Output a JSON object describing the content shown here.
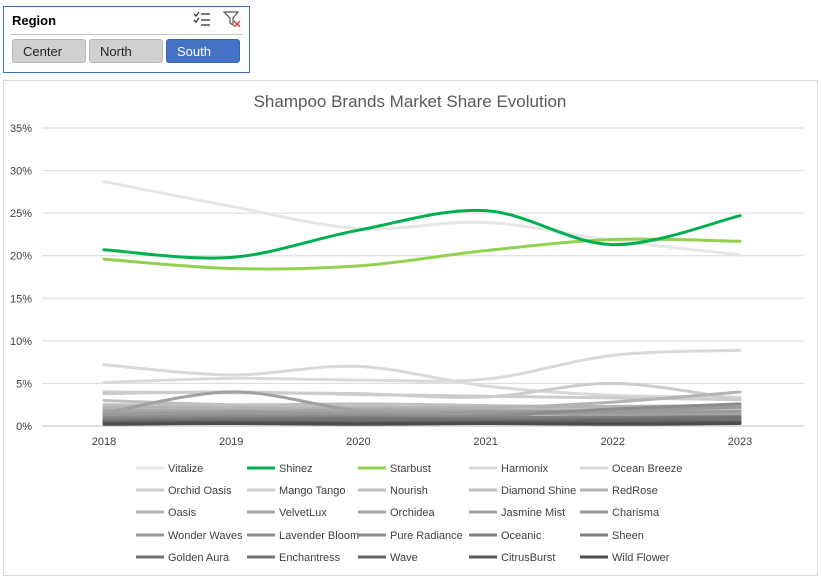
{
  "slicer": {
    "title": "Region",
    "icons": {
      "multiselect": "multi-select-icon",
      "clear": "clear-filter-icon"
    },
    "items": [
      {
        "label": "Center",
        "selected": false
      },
      {
        "label": "North",
        "selected": false
      },
      {
        "label": "South",
        "selected": true
      }
    ],
    "selected_color": "#4472c4"
  },
  "chart_data": {
    "type": "line",
    "title": "Shampoo Brands Market Share Evolution",
    "x": [
      "2018",
      "2019",
      "2020",
      "2021",
      "2022",
      "2023"
    ],
    "ylim": [
      0,
      0.35
    ],
    "yticks": [
      "0%",
      "5%",
      "10%",
      "15%",
      "20%",
      "25%",
      "30%",
      "35%"
    ],
    "grid": true,
    "legend_position": "bottom",
    "series": [
      {
        "name": "Vitalize",
        "color": "#e6e6e6",
        "values": [
          0.287,
          0.258,
          0.232,
          0.239,
          0.218,
          0.201
        ]
      },
      {
        "name": "Shinez",
        "color": "#00b050",
        "values": [
          0.207,
          0.198,
          0.23,
          0.253,
          0.213,
          0.247
        ]
      },
      {
        "name": "Starbust",
        "color": "#92d050",
        "values": [
          0.196,
          0.185,
          0.188,
          0.206,
          0.219,
          0.217
        ]
      },
      {
        "name": "Harmonix",
        "color": "#d9d9d9",
        "values": [
          0.072,
          0.06,
          0.07,
          0.047,
          0.036,
          0.034
        ]
      },
      {
        "name": "Ocean Breeze",
        "color": "#d9d9d9",
        "values": [
          0.051,
          0.056,
          0.054,
          0.055,
          0.083,
          0.089
        ]
      },
      {
        "name": "Orchid Oasis",
        "color": "#cccccc",
        "values": [
          0.04,
          0.039,
          0.038,
          0.034,
          0.05,
          0.031
        ]
      },
      {
        "name": "Mango Tango",
        "color": "#cccccc",
        "values": [
          0.038,
          0.04,
          0.037,
          0.035,
          0.033,
          0.031
        ]
      },
      {
        "name": "Nourish",
        "color": "#bfbfbf",
        "values": [
          0.03,
          0.025,
          0.026,
          0.024,
          0.022,
          0.02
        ]
      },
      {
        "name": "Diamond Shine",
        "color": "#bfbfbf",
        "values": [
          0.025,
          0.024,
          0.023,
          0.02,
          0.021,
          0.019
        ]
      },
      {
        "name": "RedRose",
        "color": "#b3b3b3",
        "values": [
          0.022,
          0.021,
          0.02,
          0.021,
          0.028,
          0.04
        ]
      },
      {
        "name": "Oasis",
        "color": "#b3b3b3",
        "values": [
          0.02,
          0.019,
          0.021,
          0.022,
          0.023,
          0.024
        ]
      },
      {
        "name": "VelvetLux",
        "color": "#a6a6a6",
        "values": [
          0.018,
          0.017,
          0.019,
          0.018,
          0.017,
          0.016
        ]
      },
      {
        "name": "Orchidea",
        "color": "#a6a6a6",
        "values": [
          0.017,
          0.018,
          0.016,
          0.015,
          0.014,
          0.015
        ]
      },
      {
        "name": "Jasmine Mist",
        "color": "#a0a0a0",
        "values": [
          0.015,
          0.04,
          0.018,
          0.01,
          0.012,
          0.013
        ]
      },
      {
        "name": "Charisma",
        "color": "#999999",
        "values": [
          0.014,
          0.016,
          0.015,
          0.016,
          0.018,
          0.022
        ]
      },
      {
        "name": "Wonder Waves",
        "color": "#999999",
        "values": [
          0.012,
          0.013,
          0.014,
          0.015,
          0.016,
          0.017
        ]
      },
      {
        "name": "Lavender Bloom",
        "color": "#8c8c8c",
        "values": [
          0.01,
          0.012,
          0.011,
          0.012,
          0.02,
          0.026
        ]
      },
      {
        "name": "Pure Radiance",
        "color": "#8c8c8c",
        "values": [
          0.009,
          0.01,
          0.012,
          0.011,
          0.01,
          0.009
        ]
      },
      {
        "name": "Oceanic",
        "color": "#808080",
        "values": [
          0.008,
          0.009,
          0.01,
          0.008,
          0.007,
          0.008
        ]
      },
      {
        "name": "Sheen",
        "color": "#808080",
        "values": [
          0.007,
          0.008,
          0.007,
          0.009,
          0.01,
          0.011
        ]
      },
      {
        "name": "Golden Aura",
        "color": "#737373",
        "values": [
          0.006,
          0.007,
          0.008,
          0.007,
          0.006,
          0.007
        ]
      },
      {
        "name": "Enchantress",
        "color": "#737373",
        "values": [
          0.005,
          0.006,
          0.005,
          0.006,
          0.008,
          0.01
        ]
      },
      {
        "name": "Wave",
        "color": "#666666",
        "values": [
          0.004,
          0.005,
          0.004,
          0.005,
          0.006,
          0.005
        ]
      },
      {
        "name": "CitrusBurst",
        "color": "#595959",
        "values": [
          0.003,
          0.004,
          0.003,
          0.004,
          0.003,
          0.004
        ]
      },
      {
        "name": "Wild Flower",
        "color": "#4d4d4d",
        "values": [
          0.002,
          0.003,
          0.002,
          0.003,
          0.002,
          0.003
        ]
      }
    ]
  }
}
